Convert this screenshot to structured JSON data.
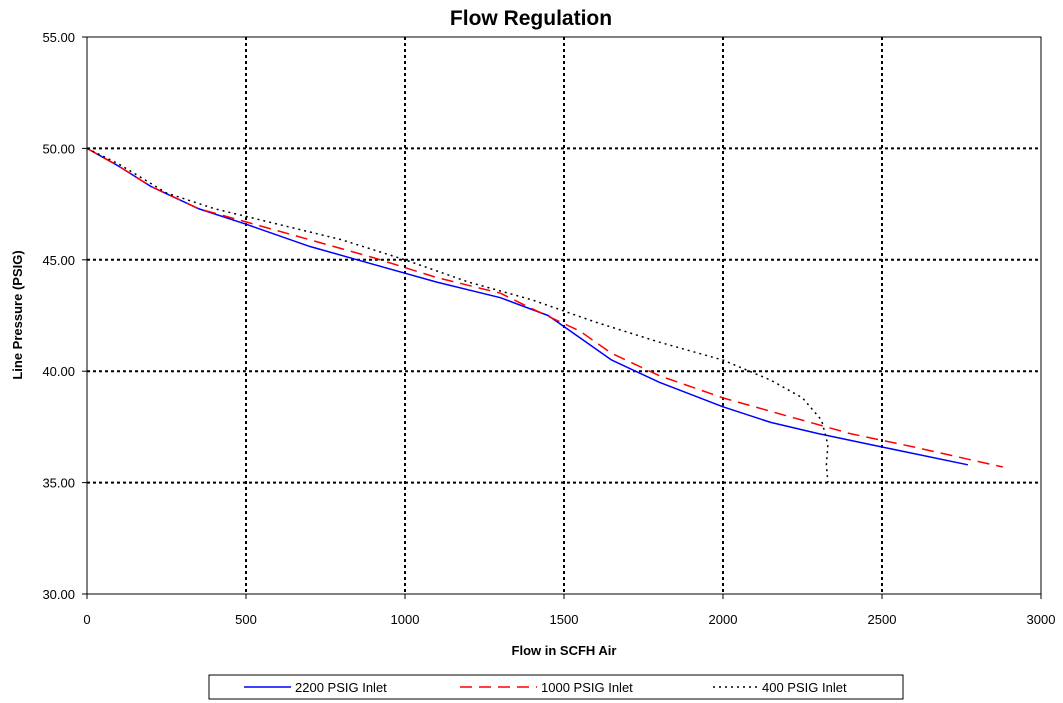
{
  "chart_data": {
    "type": "line",
    "title": "Flow Regulation",
    "xlabel": "Flow in SCFH Air",
    "ylabel": "Line Pressure (PSIG)",
    "xlim": [
      0,
      3000
    ],
    "ylim": [
      30,
      55
    ],
    "x_ticks": [
      0,
      500,
      1000,
      1500,
      2000,
      2500,
      3000
    ],
    "x_tick_labels": [
      "0",
      "500",
      "1000",
      "1500",
      "2000",
      "2500",
      "3000"
    ],
    "y_ticks": [
      30,
      35,
      40,
      45,
      50,
      55
    ],
    "y_tick_labels": [
      "30.00",
      "35.00",
      "40.00",
      "45.00",
      "50.00",
      "55.00"
    ],
    "grid": true,
    "legend_position": "bottom",
    "series": [
      {
        "name": "2200 PSIG Inlet",
        "color": "#0000ff",
        "style": "solid",
        "points": [
          [
            0,
            50.0
          ],
          [
            100,
            49.2
          ],
          [
            200,
            48.3
          ],
          [
            350,
            47.3
          ],
          [
            500,
            46.6
          ],
          [
            700,
            45.6
          ],
          [
            900,
            44.8
          ],
          [
            1100,
            44.0
          ],
          [
            1300,
            43.3
          ],
          [
            1450,
            42.5
          ],
          [
            1550,
            41.5
          ],
          [
            1650,
            40.5
          ],
          [
            1800,
            39.5
          ],
          [
            2000,
            38.4
          ],
          [
            2150,
            37.7
          ],
          [
            2300,
            37.2
          ],
          [
            2500,
            36.6
          ],
          [
            2770,
            35.8
          ]
        ]
      },
      {
        "name": "1000 PSIG Inlet",
        "color": "#ff0000",
        "style": "dashed",
        "points": [
          [
            0,
            50.0
          ],
          [
            100,
            49.2
          ],
          [
            200,
            48.3
          ],
          [
            350,
            47.3
          ],
          [
            500,
            46.7
          ],
          [
            700,
            45.9
          ],
          [
            900,
            45.1
          ],
          [
            1100,
            44.2
          ],
          [
            1300,
            43.5
          ],
          [
            1400,
            42.8
          ],
          [
            1550,
            41.8
          ],
          [
            1650,
            40.8
          ],
          [
            1800,
            39.8
          ],
          [
            2000,
            38.8
          ],
          [
            2200,
            38.0
          ],
          [
            2400,
            37.2
          ],
          [
            2600,
            36.6
          ],
          [
            2880,
            35.7
          ]
        ]
      },
      {
        "name": "400 PSIG Inlet",
        "color": "#000000",
        "style": "dotted",
        "points": [
          [
            0,
            50.0
          ],
          [
            100,
            49.3
          ],
          [
            250,
            48.0
          ],
          [
            400,
            47.3
          ],
          [
            600,
            46.6
          ],
          [
            800,
            45.9
          ],
          [
            1000,
            45.0
          ],
          [
            1200,
            44.0
          ],
          [
            1400,
            43.2
          ],
          [
            1600,
            42.2
          ],
          [
            1800,
            41.3
          ],
          [
            2000,
            40.5
          ],
          [
            2150,
            39.6
          ],
          [
            2250,
            38.8
          ],
          [
            2310,
            37.8
          ],
          [
            2330,
            36.7
          ],
          [
            2325,
            35.8
          ],
          [
            2330,
            35.0
          ]
        ]
      }
    ]
  }
}
